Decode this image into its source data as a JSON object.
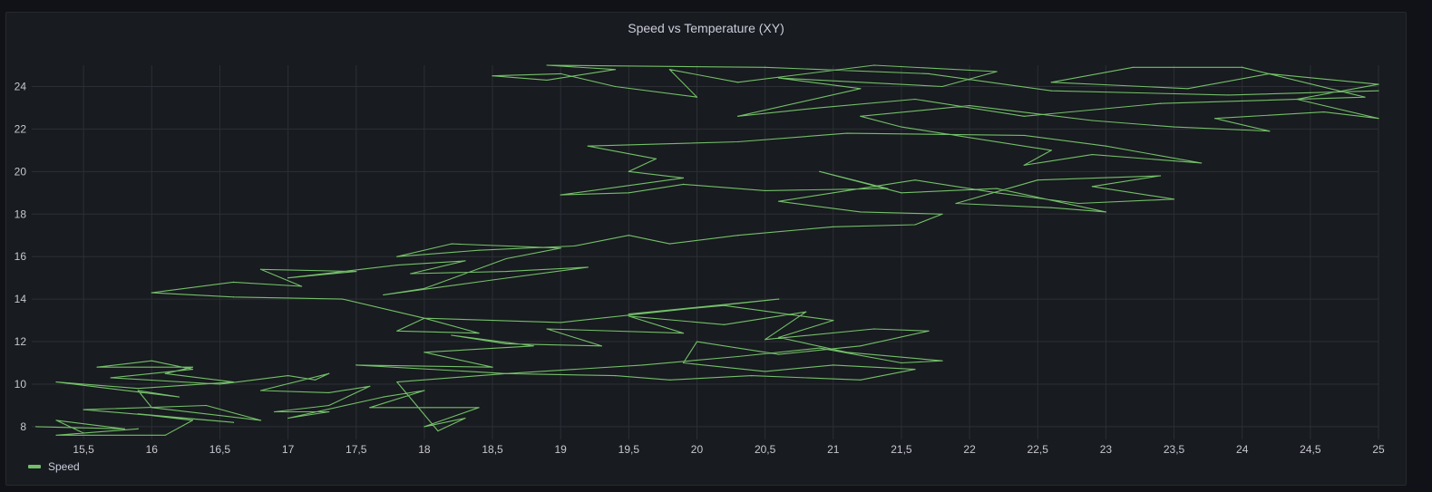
{
  "panel": {
    "title": "Speed vs Temperature (XY)"
  },
  "legend": {
    "items": [
      {
        "label": "Speed",
        "color": "#73bf69"
      }
    ],
    "placement": "bottom-left"
  },
  "colors": {
    "background": "#111217",
    "panel": "#181b1f",
    "grid": "#2c2f35",
    "series": "#73bf69"
  },
  "chart_data": {
    "type": "line",
    "title": "Speed vs Temperature (XY)",
    "xlabel": "",
    "ylabel": "",
    "xlim": [
      15.12,
      25
    ],
    "ylim": [
      7.4,
      25
    ],
    "grid": true,
    "legend_placement": "bottom-left",
    "x_ticks": [
      "15,5",
      "16",
      "16,5",
      "17",
      "17,5",
      "18",
      "18,5",
      "19",
      "19,5",
      "20",
      "20,5",
      "21",
      "21,5",
      "22",
      "22,5",
      "23",
      "23,5",
      "24",
      "24,5",
      "25"
    ],
    "x_tick_values": [
      15.5,
      16,
      16.5,
      17,
      17.5,
      18,
      18.5,
      19,
      19.5,
      20,
      20.5,
      21,
      21.5,
      22,
      22.5,
      23,
      23.5,
      24,
      24.5,
      25
    ],
    "y_ticks": [
      "8",
      "10",
      "12",
      "14",
      "16",
      "18",
      "20",
      "22",
      "24"
    ],
    "y_tick_values": [
      8,
      10,
      12,
      14,
      16,
      18,
      20,
      22,
      24
    ],
    "series": [
      {
        "name": "Speed",
        "color": "#73bf69",
        "points": [
          [
            15.15,
            8.0
          ],
          [
            15.8,
            7.9
          ],
          [
            15.3,
            8.3
          ],
          [
            15.5,
            7.7
          ],
          [
            15.9,
            7.9
          ],
          [
            15.3,
            7.6
          ],
          [
            16.1,
            7.6
          ],
          [
            16.3,
            8.3
          ],
          [
            15.9,
            8.6
          ],
          [
            16.6,
            8.2
          ],
          [
            15.5,
            8.8
          ],
          [
            16.4,
            9.0
          ],
          [
            16.8,
            8.3
          ],
          [
            16.0,
            8.9
          ],
          [
            15.9,
            9.7
          ],
          [
            16.2,
            9.4
          ],
          [
            15.3,
            10.1
          ],
          [
            15.9,
            9.8
          ],
          [
            16.6,
            10.1
          ],
          [
            16.1,
            10.5
          ],
          [
            16.3,
            10.8
          ],
          [
            15.6,
            10.8
          ],
          [
            16.0,
            11.1
          ],
          [
            16.3,
            10.7
          ],
          [
            15.7,
            10.3
          ],
          [
            16.5,
            10.0
          ],
          [
            17.0,
            10.4
          ],
          [
            17.2,
            10.2
          ],
          [
            17.3,
            10.5
          ],
          [
            16.8,
            9.7
          ],
          [
            17.3,
            9.6
          ],
          [
            17.6,
            9.9
          ],
          [
            17.3,
            9.0
          ],
          [
            16.9,
            8.7
          ],
          [
            17.3,
            8.7
          ],
          [
            17.0,
            8.4
          ],
          [
            17.7,
            9.4
          ],
          [
            18.0,
            9.7
          ],
          [
            17.6,
            8.9
          ],
          [
            18.4,
            8.9
          ],
          [
            18.0,
            8.0
          ],
          [
            18.3,
            8.4
          ],
          [
            18.1,
            7.8
          ],
          [
            17.8,
            10.1
          ],
          [
            18.6,
            10.5
          ],
          [
            17.5,
            10.9
          ],
          [
            18.5,
            10.8
          ],
          [
            18.0,
            11.5
          ],
          [
            18.8,
            11.8
          ],
          [
            18.2,
            12.3
          ],
          [
            18.6,
            11.9
          ],
          [
            19.3,
            11.8
          ],
          [
            18.9,
            12.6
          ],
          [
            19.9,
            12.4
          ],
          [
            19.5,
            13.2
          ],
          [
            20.2,
            12.8
          ],
          [
            20.8,
            13.4
          ],
          [
            20.5,
            12.1
          ],
          [
            21.3,
            12.6
          ],
          [
            21.7,
            12.5
          ],
          [
            21.2,
            11.8
          ],
          [
            20.6,
            11.4
          ],
          [
            20.0,
            12.0
          ],
          [
            19.9,
            11.0
          ],
          [
            20.5,
            10.6
          ],
          [
            21.0,
            10.9
          ],
          [
            21.6,
            10.7
          ],
          [
            21.2,
            10.2
          ],
          [
            20.4,
            10.4
          ],
          [
            19.8,
            10.2
          ],
          [
            19.4,
            10.4
          ],
          [
            18.6,
            10.5
          ],
          [
            19.6,
            10.9
          ],
          [
            20.3,
            11.3
          ],
          [
            20.9,
            11.7
          ],
          [
            21.5,
            11.0
          ],
          [
            21.8,
            11.1
          ],
          [
            21.1,
            11.5
          ],
          [
            20.6,
            12.2
          ],
          [
            21.0,
            13.0
          ],
          [
            20.2,
            13.7
          ],
          [
            19.5,
            13.3
          ],
          [
            20.6,
            14.0
          ],
          [
            19.0,
            12.9
          ],
          [
            18.0,
            13.1
          ],
          [
            17.8,
            12.5
          ],
          [
            18.4,
            12.4
          ],
          [
            18.0,
            13.1
          ],
          [
            17.4,
            14.0
          ],
          [
            16.6,
            14.1
          ],
          [
            16.0,
            14.3
          ],
          [
            16.6,
            14.8
          ],
          [
            17.1,
            14.6
          ],
          [
            16.8,
            15.4
          ],
          [
            17.5,
            15.3
          ],
          [
            17.0,
            15.0
          ],
          [
            17.8,
            15.6
          ],
          [
            18.3,
            15.8
          ],
          [
            17.9,
            15.2
          ],
          [
            18.6,
            15.3
          ],
          [
            19.2,
            15.5
          ],
          [
            18.5,
            14.9
          ],
          [
            17.7,
            14.2
          ],
          [
            18.0,
            14.5
          ],
          [
            18.6,
            15.9
          ],
          [
            19.0,
            16.4
          ],
          [
            18.2,
            16.6
          ],
          [
            17.8,
            16.0
          ],
          [
            18.4,
            16.3
          ],
          [
            19.1,
            16.5
          ],
          [
            19.5,
            17.0
          ],
          [
            19.8,
            16.6
          ],
          [
            20.3,
            17.0
          ],
          [
            21.0,
            17.4
          ],
          [
            21.6,
            17.5
          ],
          [
            21.8,
            18.0
          ],
          [
            21.2,
            18.1
          ],
          [
            20.6,
            18.6
          ],
          [
            21.0,
            19.0
          ],
          [
            21.6,
            19.6
          ],
          [
            22.2,
            19.0
          ],
          [
            22.8,
            18.5
          ],
          [
            23.5,
            18.7
          ],
          [
            22.9,
            19.3
          ],
          [
            23.4,
            19.8
          ],
          [
            22.5,
            19.6
          ],
          [
            21.9,
            18.5
          ],
          [
            22.6,
            18.3
          ],
          [
            23.0,
            18.1
          ],
          [
            22.2,
            19.2
          ],
          [
            21.5,
            19.0
          ],
          [
            20.9,
            20.0
          ],
          [
            21.4,
            19.2
          ],
          [
            20.5,
            19.1
          ],
          [
            19.9,
            19.4
          ],
          [
            19.5,
            19.0
          ],
          [
            19.0,
            18.9
          ],
          [
            19.9,
            19.7
          ],
          [
            19.5,
            20.0
          ],
          [
            19.7,
            20.6
          ],
          [
            19.2,
            21.2
          ],
          [
            20.3,
            21.4
          ],
          [
            21.1,
            21.8
          ],
          [
            22.4,
            21.7
          ],
          [
            23.0,
            21.2
          ],
          [
            23.7,
            20.4
          ],
          [
            22.9,
            20.8
          ],
          [
            22.4,
            20.3
          ],
          [
            22.6,
            21.0
          ],
          [
            21.5,
            22.1
          ],
          [
            21.2,
            22.6
          ],
          [
            22.0,
            23.1
          ],
          [
            22.9,
            22.4
          ],
          [
            23.5,
            22.1
          ],
          [
            24.2,
            21.9
          ],
          [
            23.8,
            22.5
          ],
          [
            24.6,
            22.8
          ],
          [
            25.0,
            22.5
          ],
          [
            24.4,
            23.4
          ],
          [
            25.0,
            24.1
          ],
          [
            24.2,
            24.6
          ],
          [
            23.6,
            23.9
          ],
          [
            22.6,
            24.2
          ],
          [
            23.2,
            24.9
          ],
          [
            24.0,
            24.9
          ],
          [
            24.9,
            23.5
          ],
          [
            23.4,
            23.2
          ],
          [
            22.4,
            22.6
          ],
          [
            21.6,
            23.4
          ],
          [
            20.9,
            23.0
          ],
          [
            20.3,
            22.6
          ],
          [
            21.2,
            23.9
          ],
          [
            20.6,
            24.4
          ],
          [
            21.8,
            24.0
          ],
          [
            22.2,
            24.7
          ],
          [
            21.3,
            25.0
          ],
          [
            20.3,
            24.2
          ],
          [
            19.8,
            24.8
          ],
          [
            20.0,
            23.5
          ],
          [
            19.4,
            24.0
          ],
          [
            19.0,
            24.6
          ],
          [
            18.5,
            24.5
          ],
          [
            18.9,
            24.3
          ],
          [
            19.4,
            24.8
          ],
          [
            18.9,
            25.0
          ],
          [
            20.5,
            24.9
          ],
          [
            21.7,
            24.6
          ],
          [
            22.6,
            23.8
          ],
          [
            23.9,
            23.6
          ],
          [
            25.0,
            23.8
          ]
        ]
      }
    ]
  }
}
